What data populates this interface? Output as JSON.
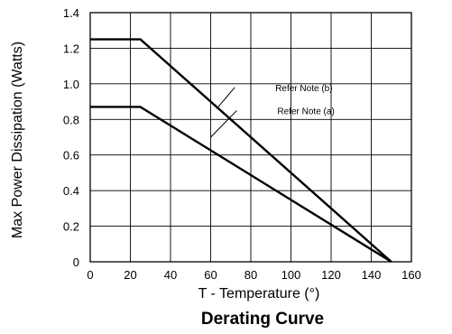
{
  "chart_data": {
    "type": "line",
    "title": "Derating Curve",
    "xlabel": "T - Temperature (°)",
    "ylabel": "Max Power Dissipation (Watts)",
    "xlim": [
      0,
      160
    ],
    "ylim": [
      0,
      1.4
    ],
    "x_ticks": [
      "0",
      "20",
      "40",
      "60",
      "80",
      "100",
      "120",
      "140",
      "160"
    ],
    "y_ticks": [
      "0",
      "0.2",
      "0.4",
      "0.6",
      "0.8",
      "1.0",
      "1.2",
      "1.4"
    ],
    "grid": true,
    "series": [
      {
        "x": [
          0,
          25,
          150
        ],
        "y": [
          1.25,
          1.25,
          0
        ]
      },
      {
        "x": [
          0,
          25,
          150
        ],
        "y": [
          0.87,
          0.87,
          0
        ]
      }
    ],
    "annotations": [
      {
        "text": "Refer Note (b)",
        "at": [
          72,
          0.98
        ],
        "from": [
          63,
          0.86
        ]
      },
      {
        "text": "Refer Note (a)",
        "at": [
          73,
          0.85
        ],
        "from": [
          60,
          0.7
        ]
      }
    ]
  }
}
